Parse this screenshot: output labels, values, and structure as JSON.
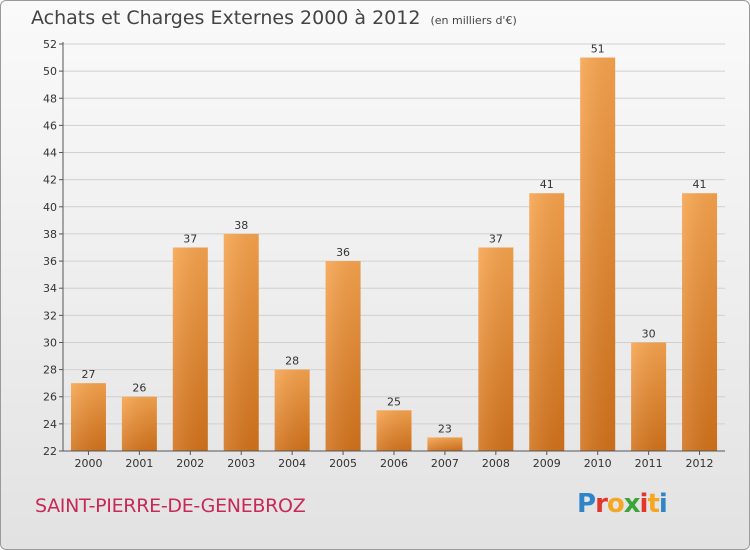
{
  "chart_data": {
    "type": "bar",
    "title": "Achats et Charges Externes 2000 à 2012",
    "unit_note": "(en milliers d'€)",
    "categories": [
      "2000",
      "2001",
      "2002",
      "2003",
      "2004",
      "2005",
      "2006",
      "2007",
      "2008",
      "2009",
      "2010",
      "2011",
      "2012"
    ],
    "values": [
      27,
      26,
      37,
      38,
      28,
      36,
      25,
      23,
      37,
      41,
      51,
      30,
      41
    ],
    "ylim": [
      22,
      52
    ],
    "yticks": [
      "22",
      "24",
      "26",
      "28",
      "30",
      "32",
      "34",
      "36",
      "38",
      "40",
      "42",
      "44",
      "46",
      "48",
      "50",
      "52"
    ],
    "grid": true,
    "legend": "none",
    "bar_color_light": "#f7a44e",
    "bar_color_dark": "#d2721b"
  },
  "commune": "SAINT-PIERRE-DE-GENEBROZ",
  "logo": {
    "letters": [
      "P",
      "r",
      "o",
      "x",
      "i",
      "t",
      "i"
    ],
    "colors": [
      "#2e86c8",
      "#e4352c",
      "#f5a623",
      "#3aa63a",
      "#e4352c",
      "#f5a623",
      "#2e86c8"
    ]
  }
}
